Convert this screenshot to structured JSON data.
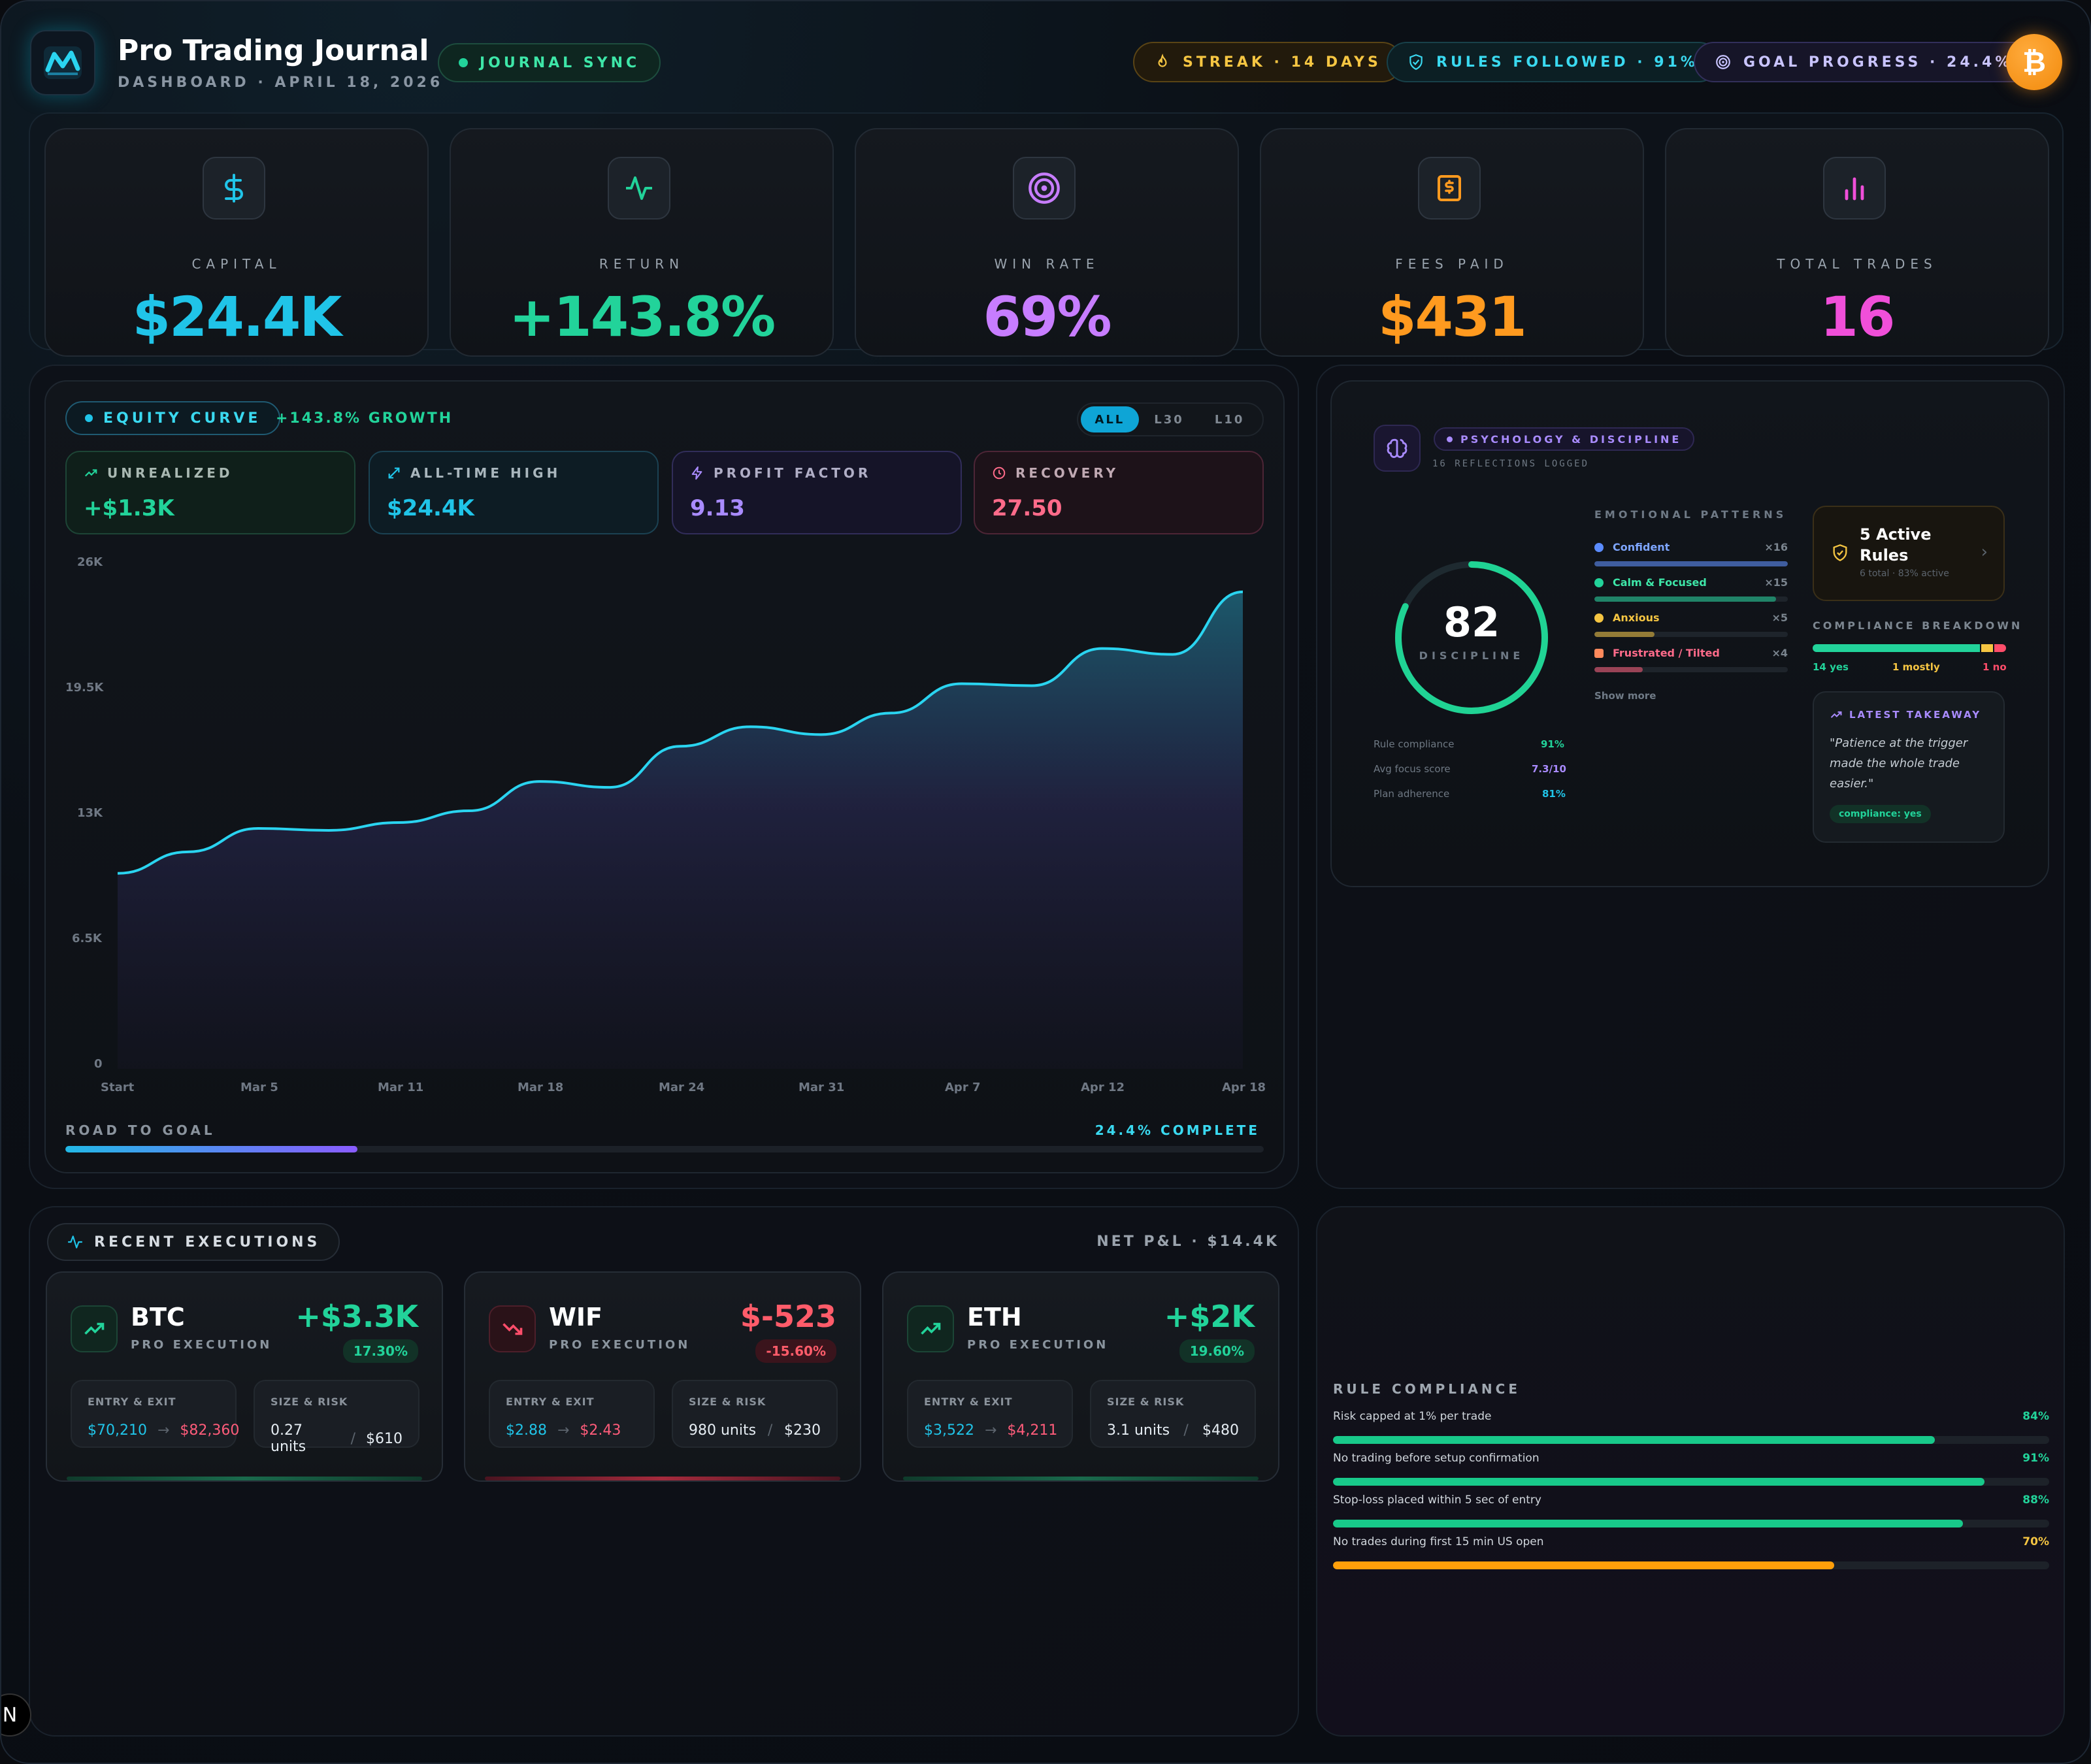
{
  "header": {
    "title": "Pro Trading Journal",
    "subtitle": "DASHBOARD · APRIL 18, 2026",
    "sync_label": "JOURNAL SYNC",
    "streak_label": "STREAK · 14 DAYS",
    "rules_label": "RULES FOLLOWED · 91%",
    "goal_label": "GOAL PROGRESS · 24.4%",
    "avatar_symbol": "₿"
  },
  "stats": [
    {
      "label": "CAPITAL",
      "value": "$24.4K",
      "icon": "dollar-icon",
      "color": "#20c4e8"
    },
    {
      "label": "RETURN",
      "value": "+143.8%",
      "icon": "pulse-icon",
      "color": "#22d39a"
    },
    {
      "label": "WIN RATE",
      "value": "69%",
      "icon": "target-icon",
      "color": "#c77dff"
    },
    {
      "label": "FEES PAID",
      "value": "$431",
      "icon": "receipt-icon",
      "color": "#ff9a1f"
    },
    {
      "label": "TOTAL TRADES",
      "value": "16",
      "icon": "bar-chart-icon",
      "color": "#f04fd9"
    }
  ],
  "equity": {
    "title": "EQUITY CURVE",
    "growth": "+143.8% GROWTH",
    "ranges": [
      "ALL",
      "L30",
      "L10"
    ],
    "active_range": "ALL",
    "metrics": [
      {
        "label": "UNREALIZED",
        "value": "+$1.3K",
        "icon": "trend-up-icon",
        "color": "#22d39a"
      },
      {
        "label": "ALL-TIME HIGH",
        "value": "$24.4K",
        "icon": "expand-icon",
        "color": "#20c4e8"
      },
      {
        "label": "PROFIT FACTOR",
        "value": "9.13",
        "icon": "bolt-icon",
        "color": "#a98bff"
      },
      {
        "label": "RECOVERY",
        "value": "27.50",
        "icon": "clock-icon",
        "color": "#ff6b8a"
      }
    ],
    "goal_label": "ROAD TO GOAL",
    "goal_complete_label": "24.4% COMPLETE",
    "goal_progress": 0.244
  },
  "chart_data": {
    "type": "area",
    "x_ticks": [
      "Start",
      "Mar 5",
      "Mar 11",
      "Mar 18",
      "Mar 24",
      "Mar 31",
      "Apr 7",
      "Apr 12",
      "Apr 18"
    ],
    "y_ticks": [
      "26K",
      "19.5K",
      "13K",
      "6.5K",
      "0"
    ],
    "ylim": [
      0,
      26000
    ],
    "y": [
      10000,
      11100,
      12300,
      12200,
      12600,
      13200,
      14700,
      14400,
      16500,
      17500,
      17100,
      18200,
      19700,
      19600,
      21500,
      21200,
      24400
    ],
    "line_color": "#2ad4f0"
  },
  "psychology": {
    "title": "PSYCHOLOGY & DISCIPLINE",
    "subtitle": "16 REFLECTIONS LOGGED",
    "score": "82",
    "score_label": "DISCIPLINE",
    "score_fraction": 0.82,
    "metrics": [
      {
        "label": "Rule compliance",
        "value": "91%",
        "color": "#22d39a"
      },
      {
        "label": "Avg focus score",
        "value": "7.3/10",
        "color": "#a98bff"
      },
      {
        "label": "Plan adherence",
        "value": "81%",
        "color": "#20c4e8"
      }
    ],
    "patterns_title": "EMOTIONAL PATTERNS",
    "patterns": [
      {
        "label": "Confident",
        "count": "×16",
        "color": "#5b8cff",
        "fill": 1.0
      },
      {
        "label": "Calm & Focused",
        "count": "×15",
        "color": "#22d39a",
        "fill": 0.94
      },
      {
        "label": "Anxious",
        "count": "×5",
        "color": "#f5c542",
        "fill": 0.31
      },
      {
        "label": "Frustrated / Tilted",
        "count": "×4",
        "color": "#ff5c7a",
        "fill": 0.25
      }
    ],
    "show_more": "Show more",
    "rules_card_title": "5 Active Rules",
    "rules_card_sub": "6 total · 83% active",
    "breakdown_title": "COMPLIANCE BREAKDOWN",
    "breakdown": [
      {
        "label": "14 yes",
        "color": "#22d39a",
        "fraction": 0.875
      },
      {
        "label": "1 mostly",
        "color": "#f5c542",
        "fraction": 0.0625
      },
      {
        "label": "1 no",
        "color": "#ff4d6a",
        "fraction": 0.0625
      }
    ],
    "takeaway_title": "LATEST TAKEAWAY",
    "takeaway_quote": "\"Patience at the trigger made the whole trade easier.\"",
    "takeaway_tag": "compliance: yes"
  },
  "executions": {
    "title": "RECENT EXECUTIONS",
    "net_label": "NET P&L · $14.4K",
    "items": [
      {
        "symbol": "BTC",
        "sub": "PRO EXECUTION",
        "pnl": "+$3.3K",
        "pct": "17.30%",
        "positive": true,
        "entry": "$70,210",
        "exit": "$82,360",
        "size": "0.27 units",
        "risk": "$610"
      },
      {
        "symbol": "WIF",
        "sub": "PRO EXECUTION",
        "pnl": "$-523",
        "pct": "-15.60%",
        "positive": false,
        "entry": "$2.88",
        "exit": "$2.43",
        "size": "980 units",
        "risk": "$230"
      },
      {
        "symbol": "ETH",
        "sub": "PRO EXECUTION",
        "pnl": "+$2K",
        "pct": "19.60%",
        "positive": true,
        "entry": "$3,522",
        "exit": "$4,211",
        "size": "3.1 units",
        "risk": "$480"
      }
    ],
    "entry_label": "ENTRY & EXIT",
    "size_label": "SIZE & RISK"
  },
  "compliance": {
    "title": "RULE COMPLIANCE",
    "rules": [
      {
        "label": "Risk capped at 1% per trade",
        "value": "84%",
        "fraction": 0.84,
        "color": "#18c98a"
      },
      {
        "label": "No trading before setup confirmation",
        "value": "91%",
        "fraction": 0.91,
        "color": "#18c98a"
      },
      {
        "label": "Stop-loss placed within 5 sec of entry",
        "value": "88%",
        "fraction": 0.88,
        "color": "#18c98a"
      },
      {
        "label": "No trades during first 15 min US open",
        "value": "70%",
        "fraction": 0.7,
        "color": "#ff9f0a"
      }
    ]
  },
  "footer": {
    "badge": "N"
  }
}
